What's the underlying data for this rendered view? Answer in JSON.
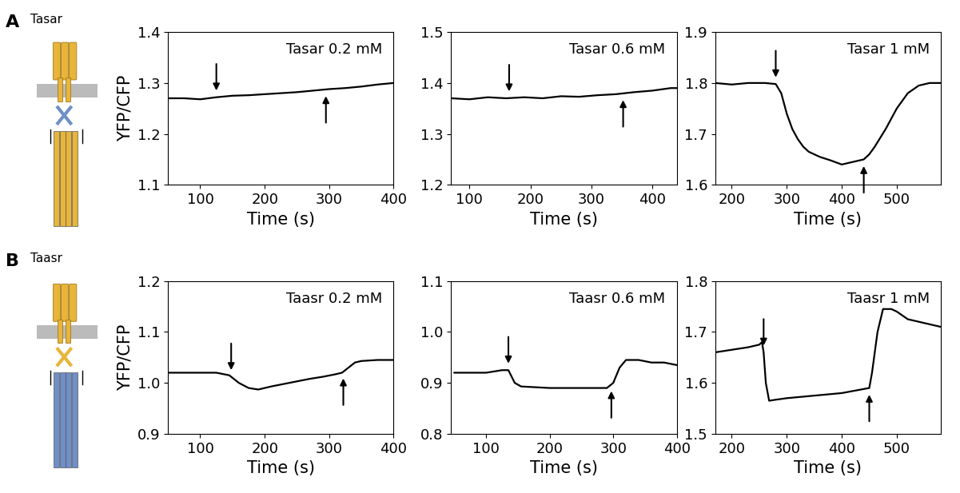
{
  "panels": [
    {
      "label": "A",
      "name": "Tasar"
    },
    {
      "label": "B",
      "name": "Taasr"
    }
  ],
  "chart_data": [
    {
      "type": "line",
      "title": "Tasar 0.2 mM",
      "x_label": "Time (s)",
      "y_label": "YFP/CFP",
      "xlim": [
        50,
        400
      ],
      "ylim": [
        1.1,
        1.4
      ],
      "xticks": [
        100,
        200,
        300,
        400
      ],
      "yticks": [
        1.1,
        1.2,
        1.3,
        1.4
      ],
      "color": "#000000",
      "x": [
        50,
        75,
        100,
        125,
        150,
        175,
        200,
        225,
        250,
        275,
        300,
        325,
        350,
        375,
        400
      ],
      "values": [
        1.27,
        1.27,
        1.268,
        1.272,
        1.275,
        1.276,
        1.278,
        1.28,
        1.282,
        1.285,
        1.288,
        1.29,
        1.293,
        1.297,
        1.3
      ],
      "arrows": [
        {
          "x": 125,
          "direction": "down"
        },
        {
          "x": 295,
          "direction": "up"
        }
      ]
    },
    {
      "type": "line",
      "title": "Tasar 0.6 mM",
      "x_label": "Time (s)",
      "xlim": [
        70,
        440
      ],
      "ylim": [
        1.2,
        1.5
      ],
      "xticks": [
        100,
        200,
        300,
        400
      ],
      "yticks": [
        1.2,
        1.3,
        1.4,
        1.5
      ],
      "color": "#000000",
      "x": [
        70,
        100,
        130,
        160,
        190,
        220,
        250,
        280,
        310,
        340,
        370,
        400,
        430,
        440
      ],
      "values": [
        1.37,
        1.368,
        1.372,
        1.37,
        1.372,
        1.37,
        1.374,
        1.373,
        1.376,
        1.378,
        1.382,
        1.385,
        1.39,
        1.39
      ],
      "arrows": [
        {
          "x": 165,
          "direction": "down"
        },
        {
          "x": 352,
          "direction": "up"
        }
      ]
    },
    {
      "type": "line",
      "title": "Tasar 1 mM",
      "x_label": "Time (s)",
      "xlim": [
        170,
        580
      ],
      "ylim": [
        1.6,
        1.9
      ],
      "xticks": [
        200,
        300,
        400,
        500
      ],
      "yticks": [
        1.6,
        1.7,
        1.8,
        1.9
      ],
      "color": "#000000",
      "x": [
        170,
        200,
        230,
        260,
        280,
        290,
        300,
        310,
        320,
        330,
        340,
        360,
        380,
        400,
        420,
        440,
        450,
        460,
        480,
        500,
        520,
        540,
        560,
        580
      ],
      "values": [
        1.8,
        1.797,
        1.8,
        1.8,
        1.798,
        1.78,
        1.74,
        1.71,
        1.69,
        1.675,
        1.665,
        1.655,
        1.648,
        1.64,
        1.645,
        1.65,
        1.66,
        1.675,
        1.71,
        1.75,
        1.78,
        1.795,
        1.8,
        1.8
      ],
      "arrows": [
        {
          "x": 280,
          "direction": "down"
        },
        {
          "x": 440,
          "direction": "up"
        }
      ]
    },
    {
      "type": "line",
      "title": "Taasr 0.2 mM",
      "x_label": "Time (s)",
      "y_label": "YFP/CFP",
      "xlim": [
        50,
        400
      ],
      "ylim": [
        0.9,
        1.2
      ],
      "xticks": [
        100,
        200,
        300,
        400
      ],
      "yticks": [
        0.9,
        1.0,
        1.1,
        1.2
      ],
      "color": "#000000",
      "x": [
        50,
        75,
        100,
        125,
        145,
        160,
        175,
        190,
        210,
        230,
        250,
        270,
        290,
        310,
        320,
        330,
        340,
        350,
        375,
        400
      ],
      "values": [
        1.02,
        1.02,
        1.02,
        1.02,
        1.015,
        1.0,
        0.99,
        0.987,
        0.993,
        0.998,
        1.003,
        1.008,
        1.012,
        1.017,
        1.02,
        1.03,
        1.04,
        1.043,
        1.045,
        1.045
      ],
      "arrows": [
        {
          "x": 148,
          "direction": "down"
        },
        {
          "x": 322,
          "direction": "up"
        }
      ]
    },
    {
      "type": "line",
      "title": "Taasr 0.6 mM",
      "x_label": "Time (s)",
      "xlim": [
        45,
        400
      ],
      "ylim": [
        0.8,
        1.1
      ],
      "xticks": [
        100,
        200,
        300,
        400
      ],
      "yticks": [
        0.8,
        0.9,
        1.0,
        1.1
      ],
      "color": "#000000",
      "x": [
        50,
        75,
        100,
        125,
        135,
        145,
        155,
        200,
        250,
        290,
        300,
        310,
        320,
        340,
        360,
        380,
        400
      ],
      "values": [
        0.92,
        0.92,
        0.92,
        0.925,
        0.925,
        0.9,
        0.893,
        0.89,
        0.89,
        0.89,
        0.9,
        0.93,
        0.945,
        0.945,
        0.94,
        0.94,
        0.935
      ],
      "arrows": [
        {
          "x": 135,
          "direction": "down"
        },
        {
          "x": 297,
          "direction": "up"
        }
      ]
    },
    {
      "type": "line",
      "title": "Taasr 1 mM",
      "x_label": "Time (s)",
      "xlim": [
        170,
        580
      ],
      "ylim": [
        1.5,
        1.8
      ],
      "xticks": [
        200,
        300,
        400,
        500
      ],
      "yticks": [
        1.5,
        1.6,
        1.7,
        1.8
      ],
      "color": "#000000",
      "x": [
        170,
        200,
        230,
        250,
        255,
        258,
        262,
        268,
        280,
        300,
        350,
        400,
        450,
        455,
        465,
        475,
        490,
        500,
        520,
        540,
        560,
        580
      ],
      "values": [
        1.66,
        1.665,
        1.67,
        1.675,
        1.68,
        1.66,
        1.6,
        1.565,
        1.567,
        1.57,
        1.575,
        1.58,
        1.59,
        1.62,
        1.7,
        1.745,
        1.745,
        1.74,
        1.725,
        1.72,
        1.715,
        1.71
      ],
      "arrows": [
        {
          "x": 258,
          "direction": "down"
        },
        {
          "x": 450,
          "direction": "up"
        }
      ]
    }
  ]
}
